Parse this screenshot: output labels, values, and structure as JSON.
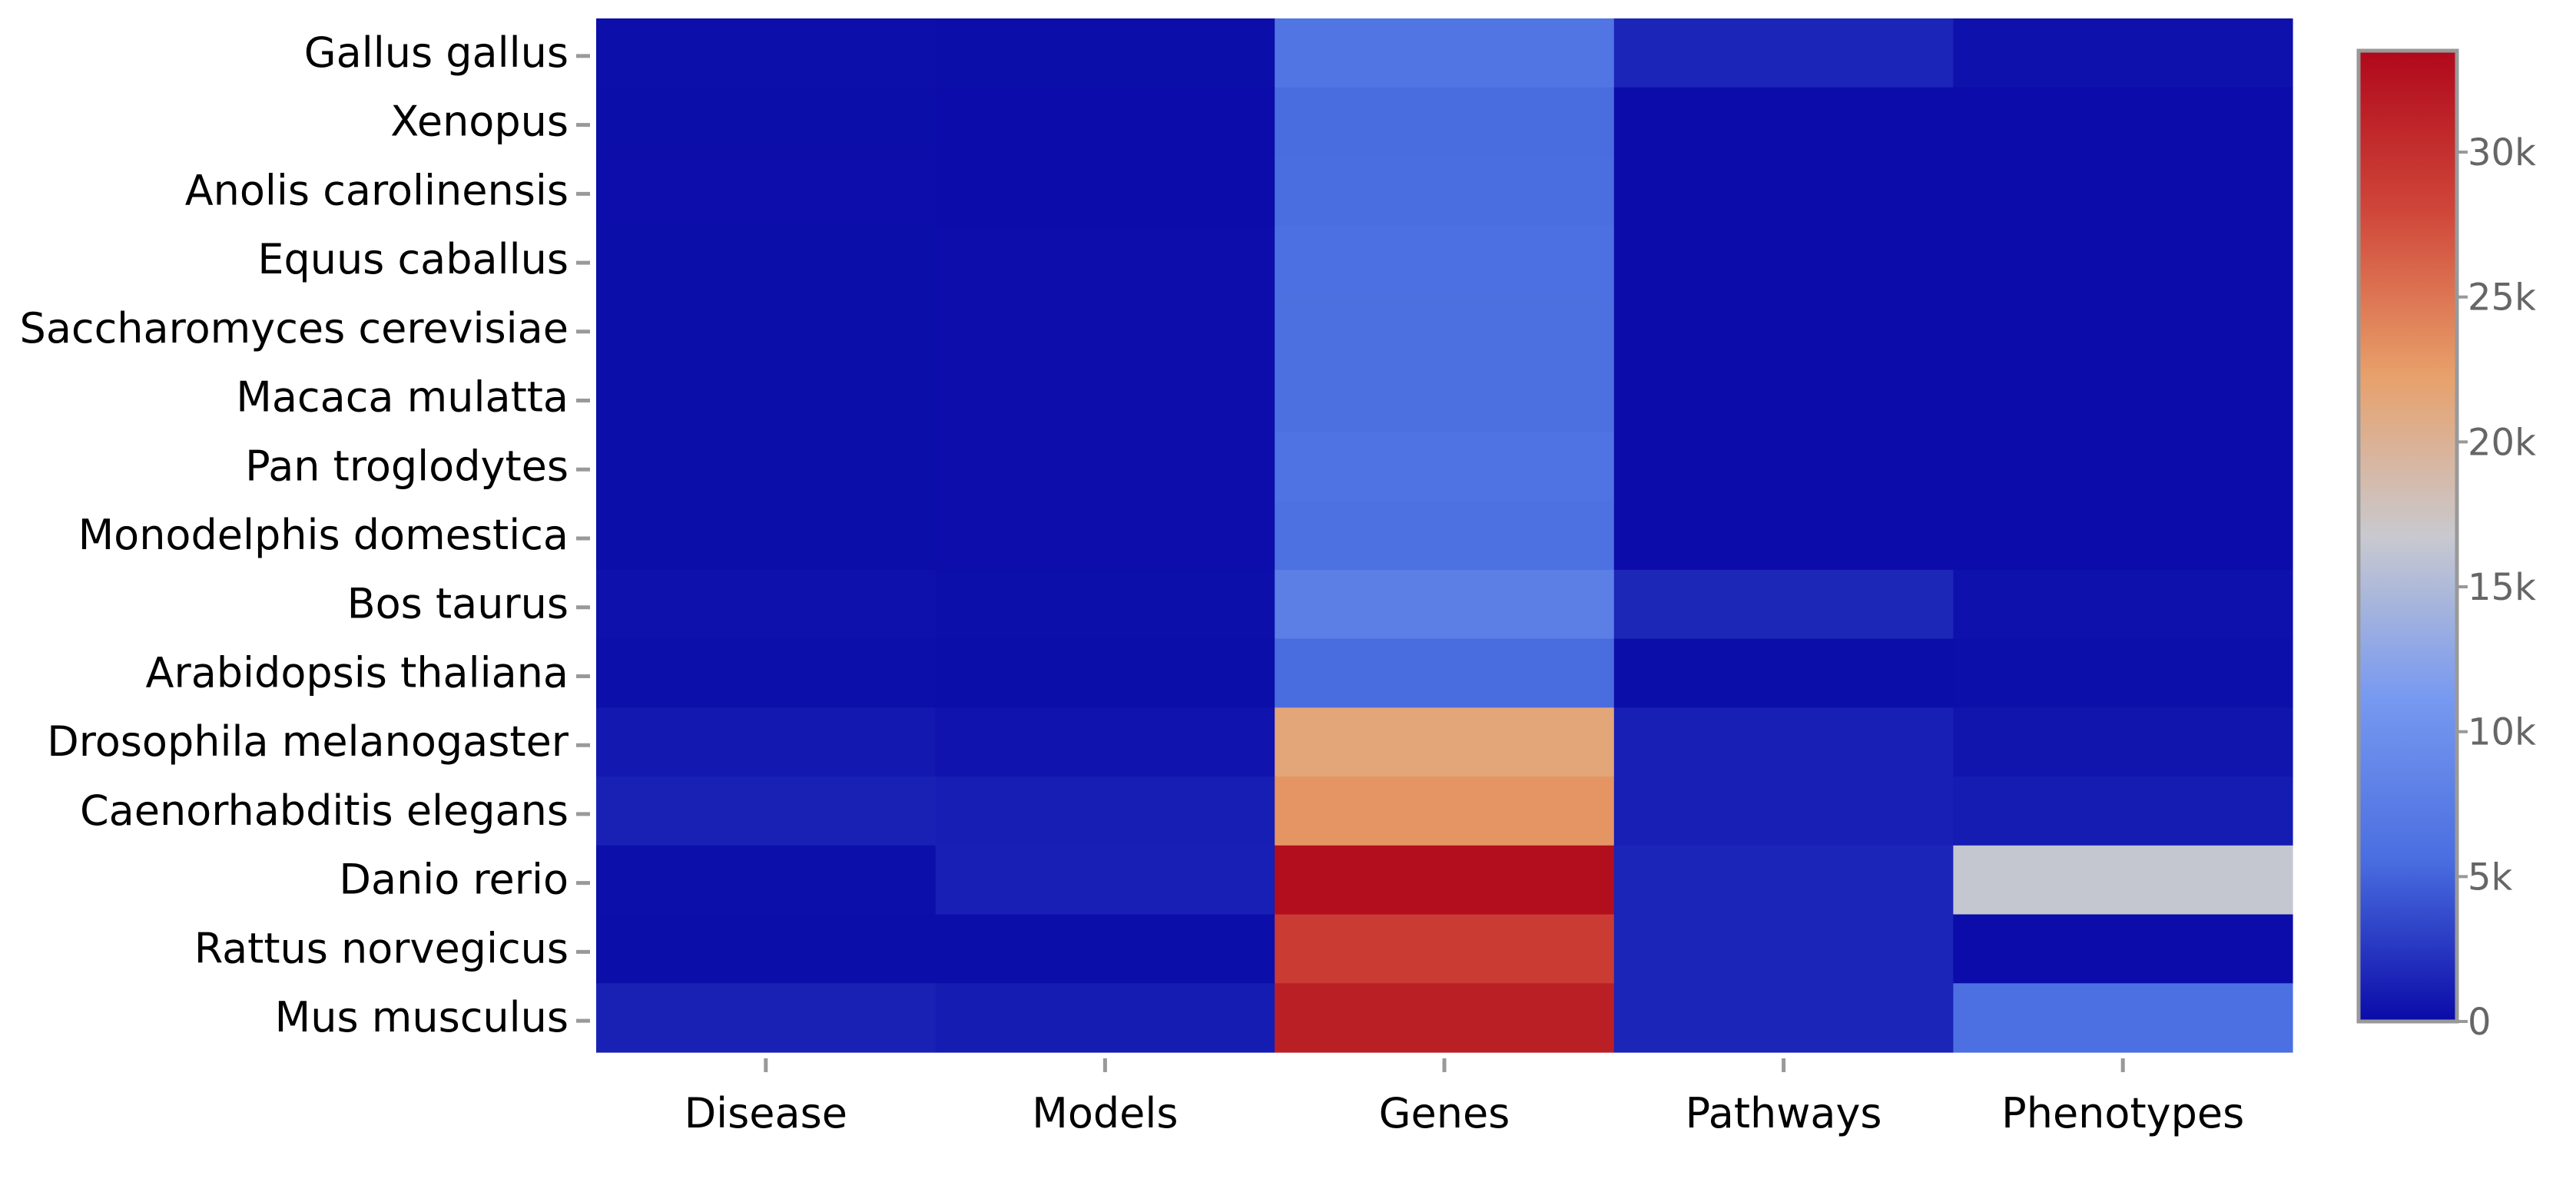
{
  "chart_data": {
    "type": "heatmap",
    "title": "",
    "xlabel": "",
    "ylabel": "",
    "x_categories": [
      "Disease",
      "Models",
      "Genes",
      "Pathways",
      "Phenotypes"
    ],
    "y_categories": [
      "Gallus gallus",
      "Xenopus",
      "Anolis carolinensis",
      "Equus caballus",
      "Saccharomyces cerevisiae",
      "Macaca mulatta",
      "Pan troglodytes",
      "Monodelphis domestica",
      "Bos taurus",
      "Arabidopsis thaliana",
      "Drosophila melanogaster",
      "Caenorhabditis elegans",
      "Danio rerio",
      "Rattus norvegicus",
      "Mus musculus"
    ],
    "values": [
      [
        300,
        200,
        6500,
        1500,
        400
      ],
      [
        200,
        100,
        5500,
        100,
        100
      ],
      [
        150,
        100,
        5600,
        100,
        100
      ],
      [
        200,
        150,
        5800,
        100,
        100
      ],
      [
        200,
        150,
        5900,
        100,
        100
      ],
      [
        200,
        150,
        5900,
        100,
        100
      ],
      [
        200,
        150,
        6200,
        100,
        100
      ],
      [
        200,
        150,
        6000,
        100,
        100
      ],
      [
        400,
        300,
        7800,
        1600,
        400
      ],
      [
        300,
        200,
        5500,
        200,
        300
      ],
      [
        800,
        500,
        21500,
        1200,
        600
      ],
      [
        1300,
        1100,
        23000,
        1200,
        1000
      ],
      [
        300,
        1200,
        33000,
        1500,
        16500
      ],
      [
        200,
        200,
        29000,
        1500,
        100
      ],
      [
        1300,
        1000,
        31500,
        1500,
        5800
      ]
    ],
    "colorbar": {
      "min": 0,
      "max": 33500,
      "ticks": [
        0,
        5000,
        10000,
        15000,
        20000,
        25000,
        30000
      ],
      "tick_labels": [
        "0",
        "5k",
        "10k",
        "15k",
        "20k",
        "25k",
        "30k"
      ],
      "colorscale": [
        "#0a0aa8",
        "#4a6ee0",
        "#7799f0",
        "#c9c9cf",
        "#e8a06a",
        "#d0473a",
        "#b0081b"
      ]
    },
    "legend_placement": "right",
    "grid": false
  }
}
